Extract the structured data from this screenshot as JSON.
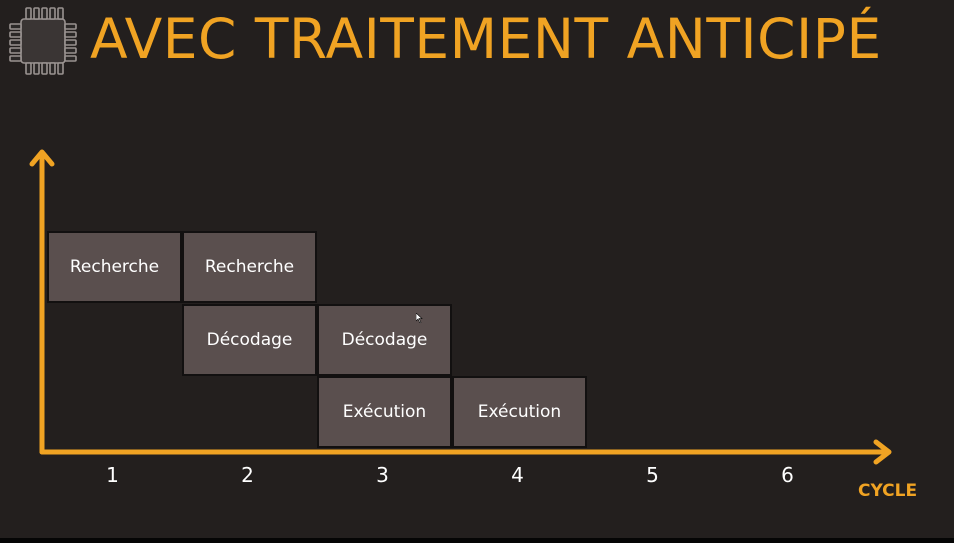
{
  "title": "AVEC TRAITEMENT ANTICIPÉ",
  "icon": "chip-icon",
  "colors": {
    "background": "#231f1e",
    "accent": "#f0a323",
    "box_fill": "#5a4f4e",
    "text": "#ffffff"
  },
  "axis": {
    "x_label": "CYCLE",
    "ticks": [
      "1",
      "2",
      "3",
      "4",
      "5",
      "6"
    ]
  },
  "stages": [
    {
      "label": "Recherche",
      "cycle": 1,
      "row": 1
    },
    {
      "label": "Recherche",
      "cycle": 2,
      "row": 1
    },
    {
      "label": "Décodage",
      "cycle": 2,
      "row": 2
    },
    {
      "label": "Décodage",
      "cycle": 3,
      "row": 2
    },
    {
      "label": "Exécution",
      "cycle": 3,
      "row": 3
    },
    {
      "label": "Exécution",
      "cycle": 4,
      "row": 3
    }
  ]
}
